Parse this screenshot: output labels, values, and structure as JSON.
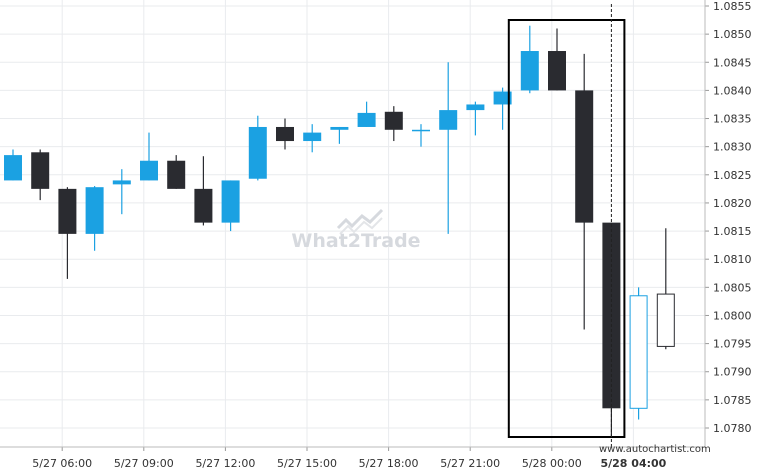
{
  "watermark": "What2Trade",
  "credit": "www.autochartist.com",
  "colors": {
    "bull": "#1ba1e2",
    "bear": "#2a2b30",
    "grid": "#e9ebee",
    "box": "#000000"
  },
  "chart_data": {
    "type": "candlestick",
    "ylim": [
      1.0775,
      1.0857
    ],
    "y_ticks": [
      "1.0855",
      "1.0850",
      "1.0845",
      "1.0840",
      "1.0835",
      "1.0830",
      "1.0825",
      "1.0820",
      "1.0815",
      "1.0810",
      "1.0805",
      "1.0800",
      "1.0795",
      "1.0790",
      "1.0785",
      "1.0780"
    ],
    "x_labels": [
      {
        "label": "5/27 06:00",
        "bar": 1
      },
      {
        "label": "5/27 09:00",
        "bar": 4
      },
      {
        "label": "5/27 12:00",
        "bar": 7
      },
      {
        "label": "5/27 15:00",
        "bar": 10
      },
      {
        "label": "5/27 18:00",
        "bar": 13
      },
      {
        "label": "5/27 21:00",
        "bar": 16
      },
      {
        "label": "5/28 00:00",
        "bar": 19
      },
      {
        "label": "5/28 04:00",
        "bar": 22,
        "bold": true
      }
    ],
    "candles": [
      {
        "o": 1.0824,
        "h": 1.08295,
        "l": 1.0824,
        "c": 1.08285
      },
      {
        "o": 1.0829,
        "h": 1.08295,
        "l": 1.08205,
        "c": 1.08225
      },
      {
        "o": 1.08225,
        "h": 1.08228,
        "l": 1.08065,
        "c": 1.08145
      },
      {
        "o": 1.08145,
        "h": 1.0823,
        "l": 1.08115,
        "c": 1.08228
      },
      {
        "o": 1.08233,
        "h": 1.0826,
        "l": 1.0818,
        "c": 1.0824
      },
      {
        "o": 1.0824,
        "h": 1.08325,
        "l": 1.0824,
        "c": 1.08275
      },
      {
        "o": 1.08275,
        "h": 1.08285,
        "l": 1.08225,
        "c": 1.08225
      },
      {
        "o": 1.08225,
        "h": 1.08283,
        "l": 1.0816,
        "c": 1.08165
      },
      {
        "o": 1.08165,
        "h": 1.0824,
        "l": 1.0815,
        "c": 1.0824
      },
      {
        "o": 1.08243,
        "h": 1.08355,
        "l": 1.0824,
        "c": 1.08335
      },
      {
        "o": 1.08335,
        "h": 1.0835,
        "l": 1.08295,
        "c": 1.0831
      },
      {
        "o": 1.0831,
        "h": 1.0834,
        "l": 1.0829,
        "c": 1.08325
      },
      {
        "o": 1.0833,
        "h": 1.08335,
        "l": 1.08305,
        "c": 1.08335
      },
      {
        "o": 1.08335,
        "h": 1.0838,
        "l": 1.08335,
        "c": 1.0836
      },
      {
        "o": 1.08362,
        "h": 1.08372,
        "l": 1.0831,
        "c": 1.0833
      },
      {
        "o": 1.0833,
        "h": 1.0834,
        "l": 1.083,
        "c": 1.0833
      },
      {
        "o": 1.0833,
        "h": 1.0845,
        "l": 1.08145,
        "c": 1.08365
      },
      {
        "o": 1.08365,
        "h": 1.0838,
        "l": 1.0832,
        "c": 1.08375
      },
      {
        "o": 1.08375,
        "h": 1.08405,
        "l": 1.0833,
        "c": 1.08398
      },
      {
        "o": 1.084,
        "h": 1.08515,
        "l": 1.08395,
        "c": 1.0847
      },
      {
        "o": 1.0847,
        "h": 1.0851,
        "l": 1.084,
        "c": 1.084
      },
      {
        "o": 1.084,
        "h": 1.08465,
        "l": 1.07975,
        "c": 1.08165
      },
      {
        "o": 1.08165,
        "h": 1.08165,
        "l": 1.07785,
        "c": 1.07835
      },
      {
        "o": 1.07835,
        "h": 1.0805,
        "l": 1.07815,
        "c": 1.08035,
        "hollow": true
      },
      {
        "o": 1.08038,
        "h": 1.08155,
        "l": 1.0794,
        "c": 1.07945,
        "hollow": true
      }
    ],
    "highlight": {
      "from_bar": 19,
      "to_bar": 22
    },
    "vline_bar": 22,
    "grid": true
  }
}
